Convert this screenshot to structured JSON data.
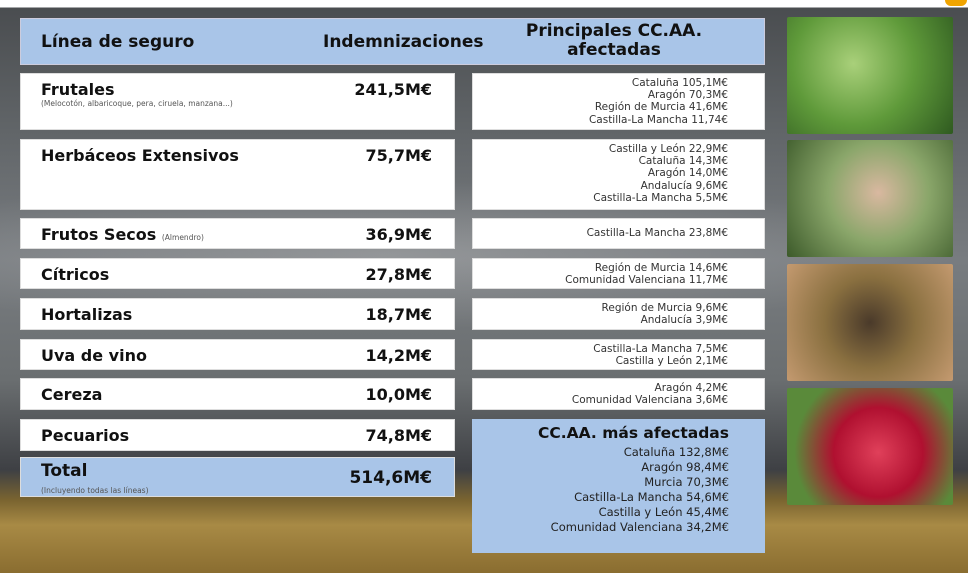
{
  "header": {
    "col1": "Línea de seguro",
    "col2": "Indemnizaciones",
    "col3_line1": "Principales CC.AA.",
    "col3_line2": "afectadas"
  },
  "rows": [
    {
      "name": "Frutales",
      "note": "(Melocotón, albaricoque, pera, ciruela, manzana...)",
      "value": "241,5M€",
      "regions": [
        "Cataluña 105,1M€",
        "Aragón 70,3M€",
        "Región de Murcia 41,6M€",
        "Castilla-La Mancha 11,74€"
      ]
    },
    {
      "name": "Herbáceos Extensivos",
      "value": "75,7M€",
      "regions": [
        "Castilla y León 22,9M€",
        "Cataluña 14,3M€",
        "Aragón 14,0M€",
        "Andalucía 9,6M€",
        "Castilla-La Mancha 5,5M€"
      ]
    },
    {
      "name": "Frutos Secos",
      "note": "(Almendro)",
      "value": "36,9M€",
      "regions": [
        "Castilla-La Mancha 23,8M€"
      ]
    },
    {
      "name": "Cítricos",
      "value": "27,8M€",
      "regions": [
        "Región de Murcia 14,6M€",
        "Comunidad Valenciana 11,7M€"
      ]
    },
    {
      "name": "Hortalizas",
      "value": "18,7M€",
      "regions": [
        "Región de Murcia 9,6M€",
        "Andalucía 3,9M€"
      ]
    },
    {
      "name": "Uva de vino",
      "value": "14,2M€",
      "regions": [
        "Castilla-La Mancha 7,5M€",
        "Castilla y León 2,1M€"
      ]
    },
    {
      "name": "Cereza",
      "value": "10,0M€",
      "regions": [
        "Aragón 4,2M€",
        "Comunidad Valenciana 3,6M€"
      ]
    },
    {
      "name": "Pecuarios",
      "value": "74,8M€"
    }
  ],
  "total": {
    "name": "Total",
    "note": "(Incluyendo todas las líneas)",
    "value": "514,6M€"
  },
  "summary": {
    "title": "CC.AA. más afectadas",
    "items": [
      "Cataluña 132,8M€",
      "Aragón 98,4M€",
      "Murcia 70,3M€",
      "Castilla-La Mancha 54,6M€",
      "Castilla y León 45,4M€",
      "Comunidad Valenciana 34,2M€"
    ]
  },
  "colors": {
    "header": "#a9c5e8",
    "row": "#ffffff"
  }
}
